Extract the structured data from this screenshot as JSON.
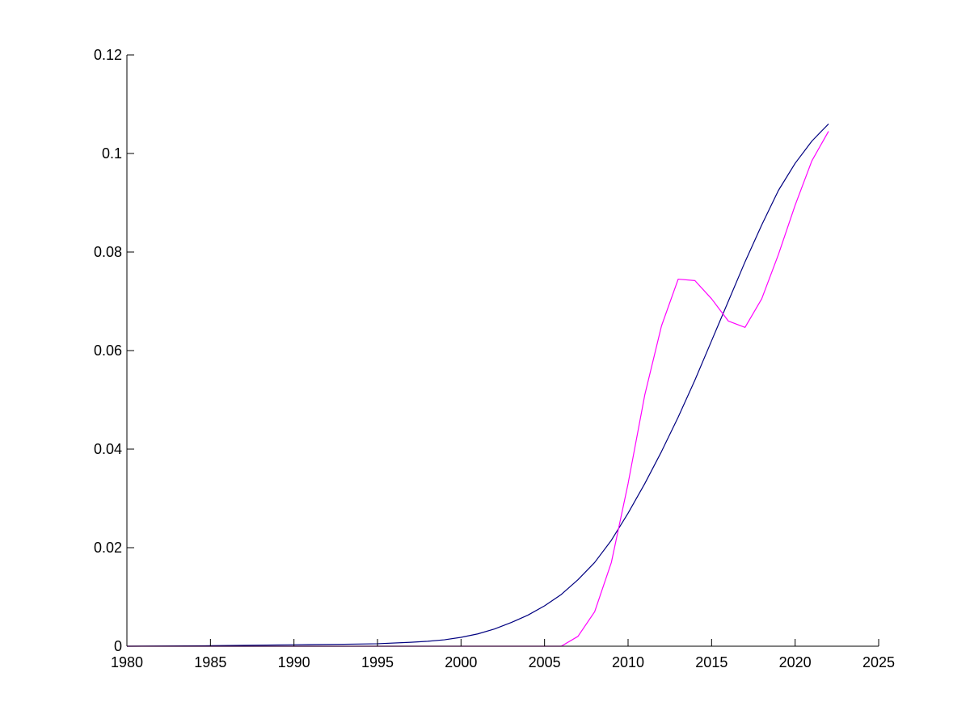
{
  "chart_data": {
    "type": "line",
    "xlim": [
      1980,
      2025
    ],
    "ylim": [
      0,
      0.12
    ],
    "x_ticks": [
      1980,
      1985,
      1990,
      1995,
      2000,
      2005,
      2010,
      2015,
      2020,
      2025
    ],
    "y_ticks": [
      0,
      0.02,
      0.04,
      0.06,
      0.08,
      0.1,
      0.12
    ],
    "x_tick_labels": [
      "1980",
      "1985",
      "1990",
      "1995",
      "2000",
      "2005",
      "2010",
      "2015",
      "2020",
      "2025"
    ],
    "y_tick_labels": [
      "0",
      "0.02",
      "0.04",
      "0.06",
      "0.08",
      "0.1",
      "0.12"
    ],
    "grid": false,
    "legend": "none",
    "series": [
      {
        "color": "#000080",
        "x": [
          1980,
          1985,
          1990,
          1993,
          1995,
          1997,
          1998,
          1999,
          2000,
          2001,
          2002,
          2003,
          2004,
          2005,
          2006,
          2007,
          2008,
          2009,
          2010,
          2011,
          2012,
          2013,
          2014,
          2015,
          2016,
          2017,
          2018,
          2019,
          2020,
          2021,
          2022
        ],
        "y": [
          0,
          0.0001,
          0.0003,
          0.0004,
          0.0005,
          0.0008,
          0.001,
          0.0013,
          0.0018,
          0.0025,
          0.0035,
          0.0048,
          0.0063,
          0.0082,
          0.0105,
          0.0135,
          0.017,
          0.0215,
          0.027,
          0.033,
          0.0395,
          0.0465,
          0.054,
          0.062,
          0.07,
          0.078,
          0.0855,
          0.0925,
          0.098,
          0.1025,
          0.106
        ]
      },
      {
        "color": "#ff00ff",
        "x": [
          1980,
          2006,
          2007,
          2008,
          2009,
          2010,
          2011,
          2012,
          2013,
          2014,
          2015,
          2016,
          2017,
          2018,
          2019,
          2020,
          2021,
          2022
        ],
        "y": [
          0,
          0,
          0.002,
          0.007,
          0.017,
          0.033,
          0.051,
          0.065,
          0.0745,
          0.0742,
          0.0705,
          0.066,
          0.0647,
          0.0705,
          0.0795,
          0.0895,
          0.0985,
          0.1045
        ]
      }
    ]
  }
}
